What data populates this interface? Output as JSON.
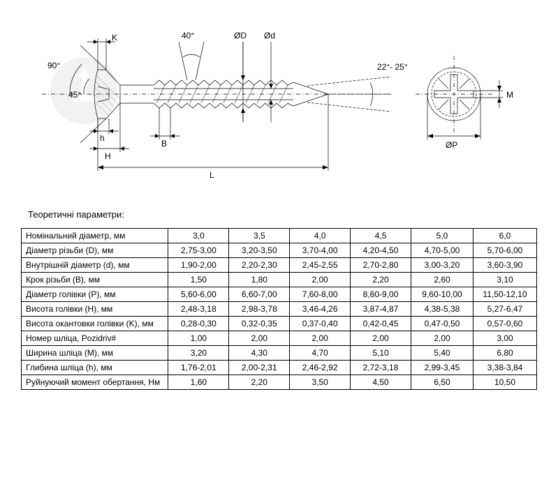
{
  "diagram": {
    "angle_head": "90°",
    "angle_chamfer": "45°",
    "angle_thread": "40°",
    "angle_tip": "22°- 25°",
    "K": "K",
    "h": "h",
    "H": "H",
    "B": "B",
    "L": "L",
    "OD": "ØD",
    "od": "Ød",
    "OP": "ØP",
    "M": "M",
    "line_color": "#000000",
    "hatch_color": "#888888"
  },
  "table": {
    "title": "Теоретичні параметри:",
    "columns": [
      "3,0",
      "3,5",
      "4,0",
      "4,5",
      "5,0",
      "6,0"
    ],
    "rows": [
      {
        "label": "Номінальний діаметр, мм",
        "vals": [
          "3,0",
          "3,5",
          "4,0",
          "4,5",
          "5,0",
          "6,0"
        ]
      },
      {
        "label": "Діаметр різьби (D), мм",
        "vals": [
          "2,75-3,00",
          "3,20-3,50",
          "3,70-4,00",
          "4,20-4,50",
          "4,70-5,00",
          "5,70-6,00"
        ]
      },
      {
        "label": "Внутрішній діаметр (d), мм",
        "vals": [
          "1,90-2,00",
          "2,20-2,30",
          "2,45-2,55",
          "2,70-2,80",
          "3,00-3,20",
          "3,60-3,90"
        ]
      },
      {
        "label": "Крок різьби (B), мм",
        "vals": [
          "1,50",
          "1,80",
          "2,00",
          "2,20",
          "2,60",
          "3,10"
        ]
      },
      {
        "label": "Діаметр голівки (P), мм",
        "vals": [
          "5,60-6,00",
          "6,60-7,00",
          "7,60-8,00",
          "8,60-9,00",
          "9,60-10,00",
          "11,50-12,10"
        ]
      },
      {
        "label": "Висота голівки (H), мм",
        "vals": [
          "2,48-3,18",
          "2,98-3,78",
          "3,46-4,26",
          "3,87-4,87",
          "4,38-5,38",
          "5,27-6,47"
        ]
      },
      {
        "label": "Висота окантовки голівки (K), мм",
        "vals": [
          "0,28-0,30",
          "0,32-0,35",
          "0,37-0,40",
          "0,42-0,45",
          "0,47-0,50",
          "0,57-0,60"
        ]
      },
      {
        "label": "Номер шліца, Pozidriv#",
        "vals": [
          "1,00",
          "2,00",
          "2,00",
          "2,00",
          "2,00",
          "3,00"
        ]
      },
      {
        "label": "Ширина шліца (M), мм",
        "vals": [
          "3,20",
          "4,30",
          "4,70",
          "5,10",
          "5,40",
          "6,80"
        ]
      },
      {
        "label": "Глибина шліца (h), мм",
        "vals": [
          "1,76-2,01",
          "2,00-2,31",
          "2,46-2,92",
          "2,72-3,18",
          "2,99-3,45",
          "3,38-3,84"
        ]
      },
      {
        "label": "Руйнуючий момент обертання, Нм",
        "vals": [
          "1,60",
          "2,20",
          "3,50",
          "4,50",
          "6,50",
          "10,50"
        ]
      }
    ],
    "border_color": "#000000",
    "font_size": 12
  }
}
